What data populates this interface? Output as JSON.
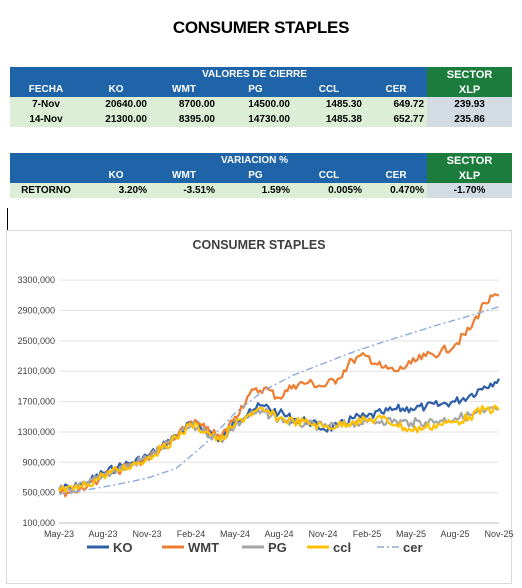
{
  "page_title": "CONSUMER STAPLES",
  "table1": {
    "group_header": "VALORES DE CIERRE",
    "sector_line1": "SECTOR",
    "sector_line2": "XLP",
    "col_fecha": "FECHA",
    "cols": [
      "KO",
      "WMT",
      "PG",
      "CCL",
      "CER"
    ],
    "rows": [
      {
        "fecha": "7-Nov",
        "ko": "20640.00",
        "wmt": "8700.00",
        "pg": "14500.00",
        "ccl": "1485.30",
        "cer": "649.72",
        "xlp": "239.93"
      },
      {
        "fecha": "14-Nov",
        "ko": "21300.00",
        "wmt": "8395.00",
        "pg": "14730.00",
        "ccl": "1485.38",
        "cer": "652.77",
        "xlp": "235.86"
      }
    ]
  },
  "table2": {
    "group_header": "VARIACION %",
    "sector_line1": "SECTOR",
    "sector_line2": "XLP",
    "cols": [
      "KO",
      "WMT",
      "PG",
      "CCL",
      "CER"
    ],
    "row": {
      "label": "RETORNO",
      "ko": "3.20%",
      "wmt": "-3.51%",
      "pg": "1.59%",
      "ccl": "0.005%",
      "cer": "0.470%",
      "xlp": "-1.70%"
    }
  },
  "chart_data": {
    "type": "line",
    "title": "CONSUMER STAPLES",
    "xlabel": "",
    "ylabel": "",
    "ylim": [
      100000,
      3500000
    ],
    "y_ticks": [
      "100,000",
      "500,000",
      "900,000",
      "1300,000",
      "1700,000",
      "2100,000",
      "2500,000",
      "2900,000",
      "3300,000"
    ],
    "y_tick_values": [
      100000,
      500000,
      900000,
      1300000,
      1700000,
      2100000,
      2500000,
      2900000,
      3300000
    ],
    "x_ticks": [
      "May-23",
      "Aug-23",
      "Nov-23",
      "Feb-24",
      "May-24",
      "Aug-24",
      "Nov-24",
      "Feb-25",
      "May-25",
      "Aug-25",
      "Nov-25"
    ],
    "grid": true,
    "legend_position": "bottom",
    "series": [
      {
        "name": "KO",
        "color": "#2e5fa7",
        "dash": false,
        "points": [
          [
            "May-23",
            560000
          ],
          [
            "Jun-23",
            565000
          ],
          [
            "Jul-23",
            640000
          ],
          [
            "Aug-23",
            760000
          ],
          [
            "Sep-23",
            830000
          ],
          [
            "Oct-23",
            900000
          ],
          [
            "Nov-23",
            980000
          ],
          [
            "Dec-23",
            1100000
          ],
          [
            "Jan-24",
            1250000
          ],
          [
            "Feb-24",
            1420000
          ],
          [
            "Mar-24",
            1330000
          ],
          [
            "Apr-24",
            1200000
          ],
          [
            "May-24",
            1420000
          ],
          [
            "Jun-24",
            1600000
          ],
          [
            "Jul-24",
            1640000
          ],
          [
            "Aug-24",
            1550000
          ],
          [
            "Sep-24",
            1470000
          ],
          [
            "Oct-24",
            1440000
          ],
          [
            "Nov-24",
            1340000
          ],
          [
            "Dec-24",
            1370000
          ],
          [
            "Jan-25",
            1480000
          ],
          [
            "Feb-25",
            1500000
          ],
          [
            "Mar-25",
            1550000
          ],
          [
            "Apr-25",
            1600000
          ],
          [
            "May-25",
            1610000
          ],
          [
            "Jun-25",
            1630000
          ],
          [
            "Jul-25",
            1660000
          ],
          [
            "Aug-25",
            1700000
          ],
          [
            "Sep-25",
            1780000
          ],
          [
            "Oct-25",
            1900000
          ],
          [
            "Nov-25",
            2000000
          ]
        ]
      },
      {
        "name": "WMT",
        "color": "#ed7d31",
        "dash": false,
        "points": [
          [
            "May-23",
            500000
          ],
          [
            "Jun-23",
            520000
          ],
          [
            "Jul-23",
            600000
          ],
          [
            "Aug-23",
            720000
          ],
          [
            "Sep-23",
            790000
          ],
          [
            "Oct-23",
            860000
          ],
          [
            "Nov-23",
            950000
          ],
          [
            "Dec-23",
            1080000
          ],
          [
            "Jan-24",
            1220000
          ],
          [
            "Feb-24",
            1440000
          ],
          [
            "Mar-24",
            1340000
          ],
          [
            "Apr-24",
            1220000
          ],
          [
            "May-24",
            1500000
          ],
          [
            "Jun-24",
            1800000
          ],
          [
            "Jul-24",
            1880000
          ],
          [
            "Aug-24",
            1750000
          ],
          [
            "Sep-24",
            1920000
          ],
          [
            "Oct-24",
            1950000
          ],
          [
            "Nov-24",
            1900000
          ],
          [
            "Dec-24",
            2000000
          ],
          [
            "Jan-25",
            2250000
          ],
          [
            "Feb-25",
            2300000
          ],
          [
            "Mar-25",
            2150000
          ],
          [
            "Apr-25",
            2100000
          ],
          [
            "May-25",
            2200000
          ],
          [
            "Jun-25",
            2300000
          ],
          [
            "Jul-25",
            2350000
          ],
          [
            "Aug-25",
            2450000
          ],
          [
            "Sep-25",
            2650000
          ],
          [
            "Oct-25",
            3000000
          ],
          [
            "Nov-25",
            3100000
          ]
        ]
      },
      {
        "name": "PG",
        "color": "#a5a5a5",
        "dash": false,
        "points": [
          [
            "May-23",
            540000
          ],
          [
            "Jun-23",
            550000
          ],
          [
            "Jul-23",
            620000
          ],
          [
            "Aug-23",
            740000
          ],
          [
            "Sep-23",
            800000
          ],
          [
            "Oct-23",
            880000
          ],
          [
            "Nov-23",
            960000
          ],
          [
            "Dec-23",
            1090000
          ],
          [
            "Jan-24",
            1230000
          ],
          [
            "Feb-24",
            1380000
          ],
          [
            "Mar-24",
            1300000
          ],
          [
            "Apr-24",
            1190000
          ],
          [
            "May-24",
            1380000
          ],
          [
            "Jun-24",
            1520000
          ],
          [
            "Jul-24",
            1560000
          ],
          [
            "Aug-24",
            1470000
          ],
          [
            "Sep-24",
            1420000
          ],
          [
            "Oct-24",
            1400000
          ],
          [
            "Nov-24",
            1370000
          ],
          [
            "Dec-24",
            1380000
          ],
          [
            "Jan-25",
            1420000
          ],
          [
            "Feb-25",
            1430000
          ],
          [
            "Mar-25",
            1450000
          ],
          [
            "Apr-25",
            1440000
          ],
          [
            "May-25",
            1420000
          ],
          [
            "Jun-25",
            1430000
          ],
          [
            "Jul-25",
            1450000
          ],
          [
            "Aug-25",
            1480000
          ],
          [
            "Sep-25",
            1520000
          ],
          [
            "Oct-25",
            1560000
          ],
          [
            "Nov-25",
            1600000
          ]
        ]
      },
      {
        "name": "ccl",
        "color": "#ffc000",
        "dash": false,
        "points": [
          [
            "May-23",
            530000
          ],
          [
            "Jun-23",
            540000
          ],
          [
            "Jul-23",
            610000
          ],
          [
            "Aug-23",
            730000
          ],
          [
            "Sep-23",
            790000
          ],
          [
            "Oct-23",
            870000
          ],
          [
            "Nov-23",
            950000
          ],
          [
            "Dec-23",
            1080000
          ],
          [
            "Jan-24",
            1220000
          ],
          [
            "Feb-24",
            1400000
          ],
          [
            "Mar-24",
            1310000
          ],
          [
            "Apr-24",
            1180000
          ],
          [
            "May-24",
            1400000
          ],
          [
            "Jun-24",
            1540000
          ],
          [
            "Jul-24",
            1580000
          ],
          [
            "Aug-24",
            1480000
          ],
          [
            "Sep-24",
            1440000
          ],
          [
            "Oct-24",
            1420000
          ],
          [
            "Nov-24",
            1370000
          ],
          [
            "Dec-24",
            1380000
          ],
          [
            "Jan-25",
            1440000
          ],
          [
            "Feb-25",
            1450000
          ],
          [
            "Mar-25",
            1480000
          ],
          [
            "Apr-25",
            1400000
          ],
          [
            "May-25",
            1320000
          ],
          [
            "Jun-25",
            1360000
          ],
          [
            "Jul-25",
            1400000
          ],
          [
            "Aug-25",
            1430000
          ],
          [
            "Sep-25",
            1500000
          ],
          [
            "Oct-25",
            1600000
          ],
          [
            "Nov-25",
            1600000
          ]
        ]
      },
      {
        "name": "cer",
        "color": "#8faadc",
        "dash": true,
        "points": [
          [
            "May-23",
            480000
          ],
          [
            "Jul-23",
            540000
          ],
          [
            "Sep-23",
            610000
          ],
          [
            "Nov-23",
            690000
          ],
          [
            "Jan-24",
            820000
          ],
          [
            "Mar-24",
            1150000
          ],
          [
            "May-24",
            1550000
          ],
          [
            "Jul-24",
            1850000
          ],
          [
            "Sep-24",
            2050000
          ],
          [
            "Nov-24",
            2200000
          ],
          [
            "Jan-25",
            2350000
          ],
          [
            "Mar-25",
            2480000
          ],
          [
            "May-25",
            2600000
          ],
          [
            "Jul-25",
            2720000
          ],
          [
            "Sep-25",
            2830000
          ],
          [
            "Nov-25",
            2950000
          ]
        ]
      }
    ]
  }
}
